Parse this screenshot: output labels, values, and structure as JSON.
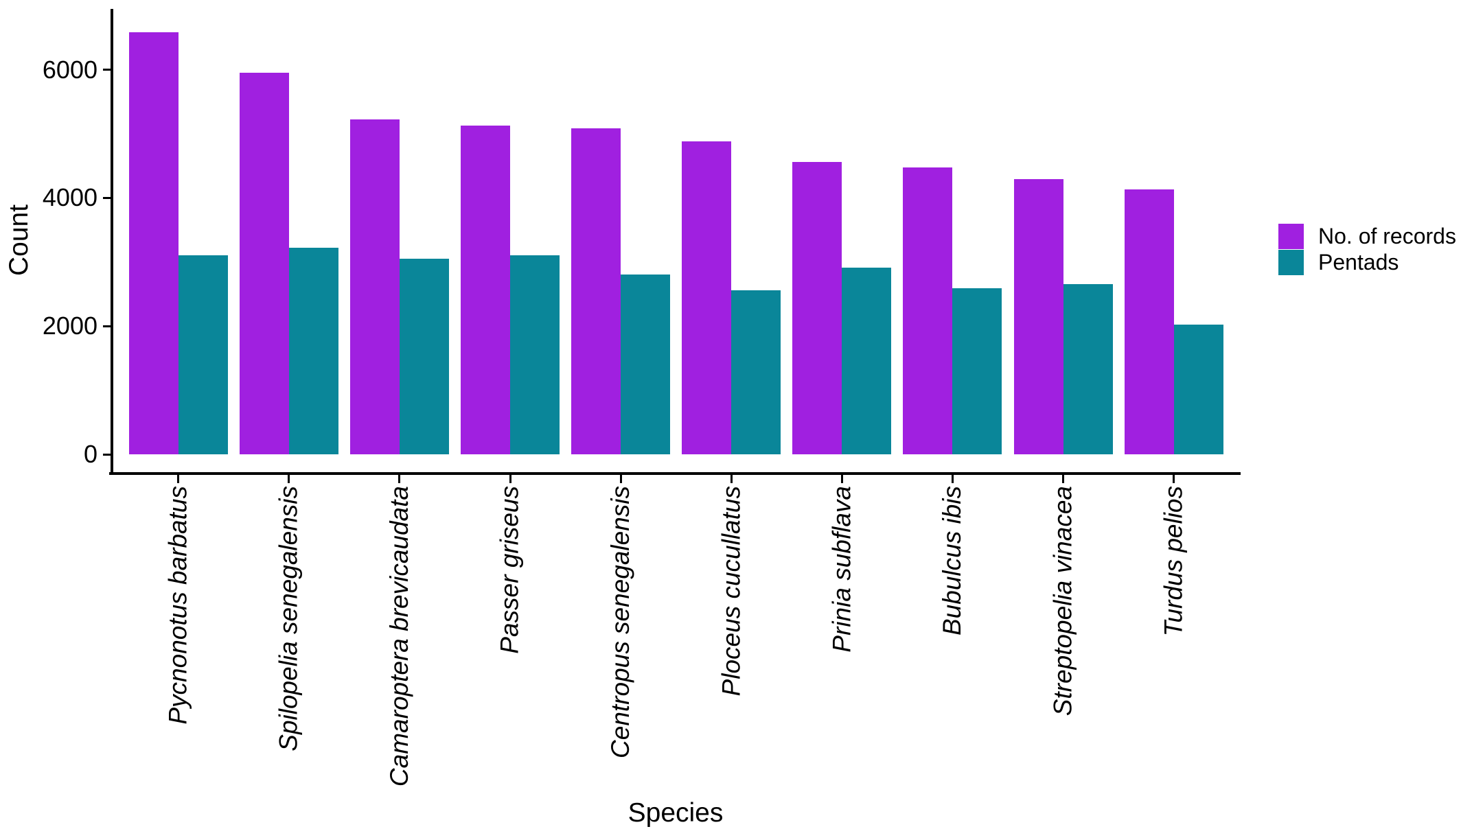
{
  "chart_data": {
    "type": "bar",
    "bar_style": "grouped",
    "title": "",
    "xlabel": "Species",
    "ylabel": "Count",
    "categories": [
      "Pycnonotus barbatus",
      "Spilopelia senegalensis",
      "Camaroptera brevicaudata",
      "Passer griseus",
      "Centropus senegalensis",
      "Ploceus cucullatus",
      "Prinia subflava",
      "Bubulcus ibis",
      "Streptopelia vinacea",
      "Turdus pelios"
    ],
    "series": [
      {
        "name": "No. of records",
        "color": "#A020E0",
        "values": [
          6580,
          5950,
          5230,
          5130,
          5090,
          4880,
          4560,
          4480,
          4290,
          4130
        ]
      },
      {
        "name": "Pentads",
        "color": "#0A8699",
        "values": [
          3100,
          3220,
          3050,
          3100,
          2810,
          2560,
          2910,
          2590,
          2650,
          2020
        ]
      }
    ],
    "yticks": [
      0,
      2000,
      4000,
      6000
    ],
    "ylim": [
      0,
      6900
    ],
    "grid": "off",
    "legend_position": "right",
    "category_label_style": "italic, rotated 90 degrees",
    "axis_color": "#000000",
    "background_color": "#ffffff"
  }
}
